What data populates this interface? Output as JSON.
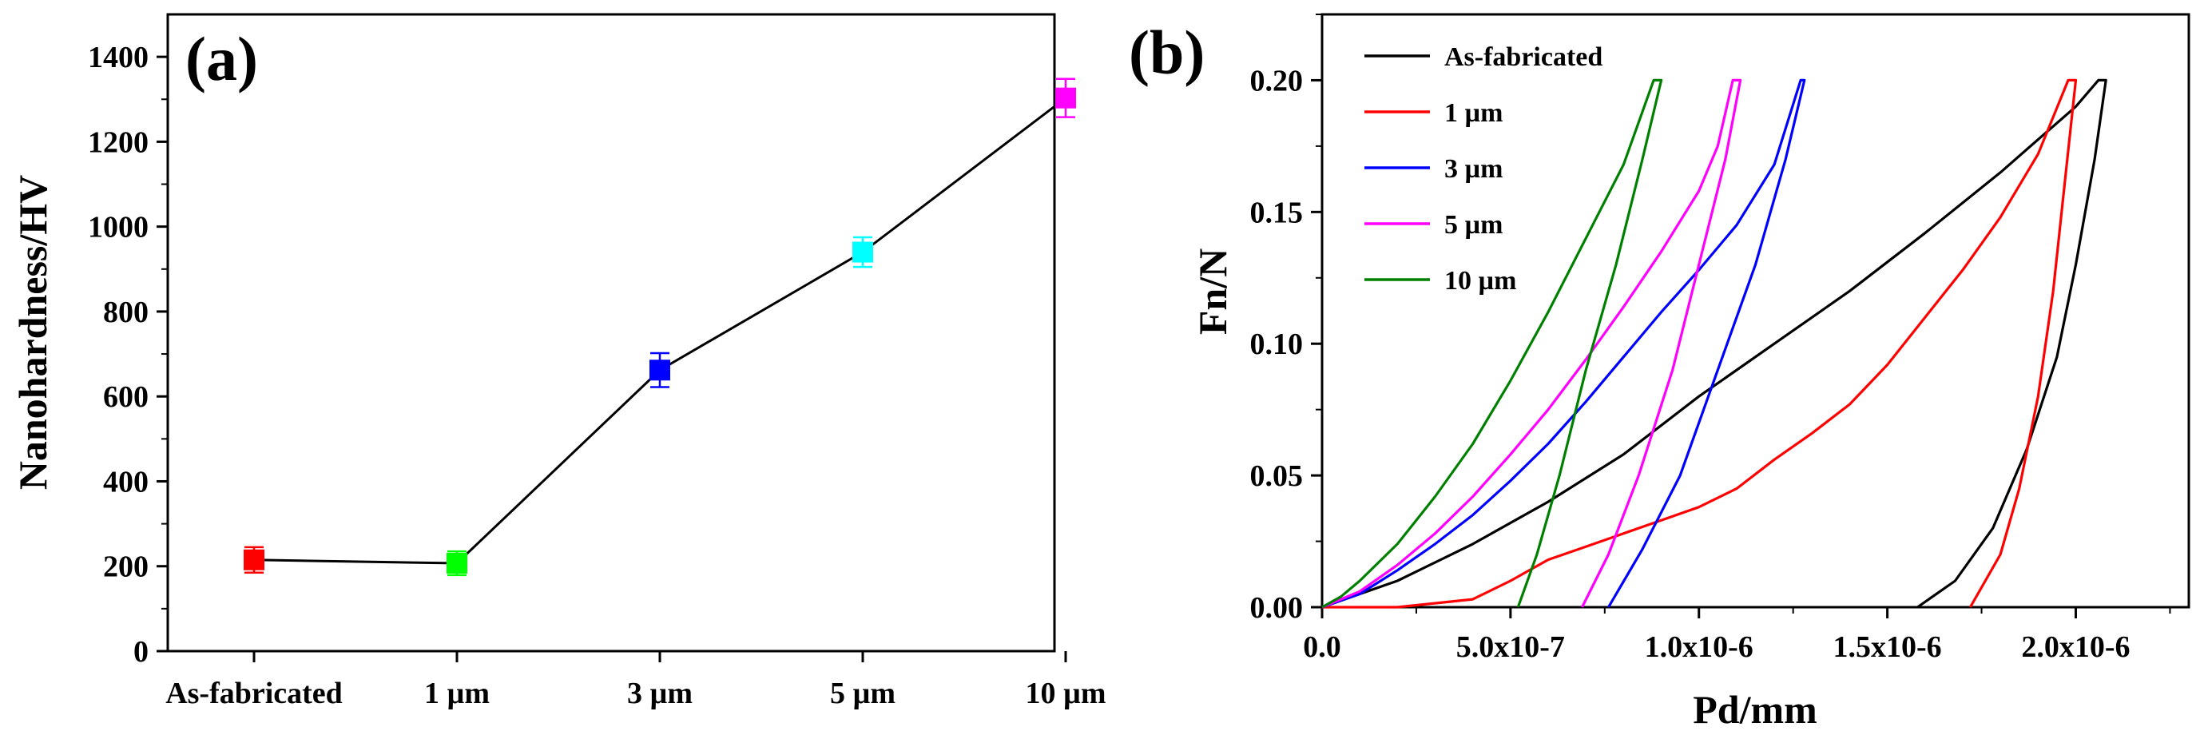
{
  "chart_data": [
    {
      "panel": "(a)",
      "type": "line",
      "ylabel": "Nanohardness/HV",
      "xlabel": "",
      "categories": [
        "As-fabricated",
        "1 µm",
        "3 µm",
        "5 µm",
        "10 µm"
      ],
      "values": [
        215,
        207,
        662,
        940,
        1303
      ],
      "errors": [
        30,
        28,
        40,
        35,
        45
      ],
      "point_colors": [
        "#ff0000",
        "#00ff00",
        "#0000ff",
        "#00ffff",
        "#ff00ff"
      ],
      "ylim": [
        0,
        1500
      ],
      "yticks": [
        0,
        200,
        400,
        600,
        800,
        1000,
        1200,
        1400
      ]
    },
    {
      "panel": "(b)",
      "type": "line",
      "xlabel": "Pd/mm",
      "ylabel": "Fn/N",
      "xlim": [
        0,
        2.3e-06
      ],
      "ylim": [
        0,
        0.225
      ],
      "xticks": [
        0,
        5e-07,
        1e-06,
        1.5e-06,
        2e-06
      ],
      "xtick_labels": [
        "0.0",
        "5.0x10-7",
        "1.0x10-6",
        "1.5x10-6",
        "2.0x10-6"
      ],
      "yticks": [
        0,
        0.05,
        0.1,
        0.15,
        0.2
      ],
      "ytick_labels": [
        "0.00",
        "0.05",
        "0.10",
        "0.15",
        "0.20"
      ],
      "legend_position": "top-left",
      "series": [
        {
          "name": "As-fabricated",
          "color": "#000000",
          "loading": [
            [
              0,
              0
            ],
            [
              2e-07,
              0.01
            ],
            [
              4e-07,
              0.024
            ],
            [
              6e-07,
              0.04
            ],
            [
              8e-07,
              0.058
            ],
            [
              1e-06,
              0.08
            ],
            [
              1.2e-06,
              0.1
            ],
            [
              1.4e-06,
              0.12
            ],
            [
              1.6e-06,
              0.142
            ],
            [
              1.8e-06,
              0.165
            ],
            [
              2e-06,
              0.19
            ],
            [
              2.06e-06,
              0.2
            ]
          ],
          "unloading": [
            [
              2.08e-06,
              0.2
            ],
            [
              2.05e-06,
              0.17
            ],
            [
              2e-06,
              0.13
            ],
            [
              1.95e-06,
              0.095
            ],
            [
              1.87e-06,
              0.06
            ],
            [
              1.78e-06,
              0.03
            ],
            [
              1.68e-06,
              0.01
            ],
            [
              1.58e-06,
              0
            ]
          ]
        },
        {
          "name": "1 µm",
          "color": "#ff0000",
          "loading": [
            [
              0,
              0
            ],
            [
              2e-07,
              0
            ],
            [
              4e-07,
              0.003
            ],
            [
              5e-07,
              0.01
            ],
            [
              6e-07,
              0.018
            ],
            [
              7e-07,
              0.023
            ],
            [
              8e-07,
              0.028
            ],
            [
              9e-07,
              0.033
            ],
            [
              1e-06,
              0.038
            ],
            [
              1.1e-06,
              0.045
            ],
            [
              1.2e-06,
              0.056
            ],
            [
              1.3e-06,
              0.066
            ],
            [
              1.4e-06,
              0.077
            ],
            [
              1.5e-06,
              0.092
            ],
            [
              1.6e-06,
              0.11
            ],
            [
              1.7e-06,
              0.128
            ],
            [
              1.8e-06,
              0.148
            ],
            [
              1.9e-06,
              0.172
            ],
            [
              1.98e-06,
              0.2
            ]
          ],
          "unloading": [
            [
              2e-06,
              0.2
            ],
            [
              1.97e-06,
              0.16
            ],
            [
              1.94e-06,
              0.12
            ],
            [
              1.9e-06,
              0.08
            ],
            [
              1.85e-06,
              0.045
            ],
            [
              1.8e-06,
              0.02
            ],
            [
              1.72e-06,
              0
            ]
          ]
        },
        {
          "name": "3 µm",
          "color": "#0000ff",
          "loading": [
            [
              0,
              0
            ],
            [
              1e-07,
              0.005
            ],
            [
              2e-07,
              0.014
            ],
            [
              3e-07,
              0.024
            ],
            [
              4e-07,
              0.035
            ],
            [
              5e-07,
              0.048
            ],
            [
              6e-07,
              0.062
            ],
            [
              7e-07,
              0.078
            ],
            [
              8e-07,
              0.095
            ],
            [
              9e-07,
              0.112
            ],
            [
              1e-06,
              0.128
            ],
            [
              1.1e-06,
              0.145
            ],
            [
              1.2e-06,
              0.168
            ],
            [
              1.27e-06,
              0.2
            ]
          ],
          "unloading": [
            [
              1.28e-06,
              0.2
            ],
            [
              1.23e-06,
              0.17
            ],
            [
              1.15e-06,
              0.13
            ],
            [
              1.05e-06,
              0.09
            ],
            [
              9.5e-07,
              0.05
            ],
            [
              8.5e-07,
              0.022
            ],
            [
              7.6e-07,
              0
            ]
          ]
        },
        {
          "name": "5 µm",
          "color": "#ff00ff",
          "loading": [
            [
              0,
              0
            ],
            [
              1e-07,
              0.006
            ],
            [
              2e-07,
              0.016
            ],
            [
              3e-07,
              0.028
            ],
            [
              4e-07,
              0.042
            ],
            [
              5e-07,
              0.058
            ],
            [
              6e-07,
              0.075
            ],
            [
              7e-07,
              0.094
            ],
            [
              8e-07,
              0.114
            ],
            [
              9e-07,
              0.135
            ],
            [
              1e-06,
              0.158
            ],
            [
              1.05e-06,
              0.175
            ],
            [
              1.09e-06,
              0.2
            ]
          ],
          "unloading": [
            [
              1.11e-06,
              0.2
            ],
            [
              1.07e-06,
              0.17
            ],
            [
              1e-06,
              0.13
            ],
            [
              9.3e-07,
              0.09
            ],
            [
              8.4e-07,
              0.05
            ],
            [
              7.6e-07,
              0.02
            ],
            [
              6.9e-07,
              0
            ]
          ]
        },
        {
          "name": "10 µm",
          "color": "#008000",
          "loading": [
            [
              0,
              0
            ],
            [
              5e-08,
              0.004
            ],
            [
              1e-07,
              0.01
            ],
            [
              2e-07,
              0.024
            ],
            [
              3e-07,
              0.042
            ],
            [
              4e-07,
              0.062
            ],
            [
              5e-07,
              0.086
            ],
            [
              6e-07,
              0.112
            ],
            [
              7e-07,
              0.14
            ],
            [
              8e-07,
              0.168
            ],
            [
              8.8e-07,
              0.2
            ]
          ],
          "unloading": [
            [
              9e-07,
              0.2
            ],
            [
              8.5e-07,
              0.17
            ],
            [
              7.8e-07,
              0.13
            ],
            [
              7e-07,
              0.09
            ],
            [
              6.3e-07,
              0.05
            ],
            [
              5.7e-07,
              0.02
            ],
            [
              5.2e-07,
              0
            ]
          ]
        }
      ]
    }
  ]
}
